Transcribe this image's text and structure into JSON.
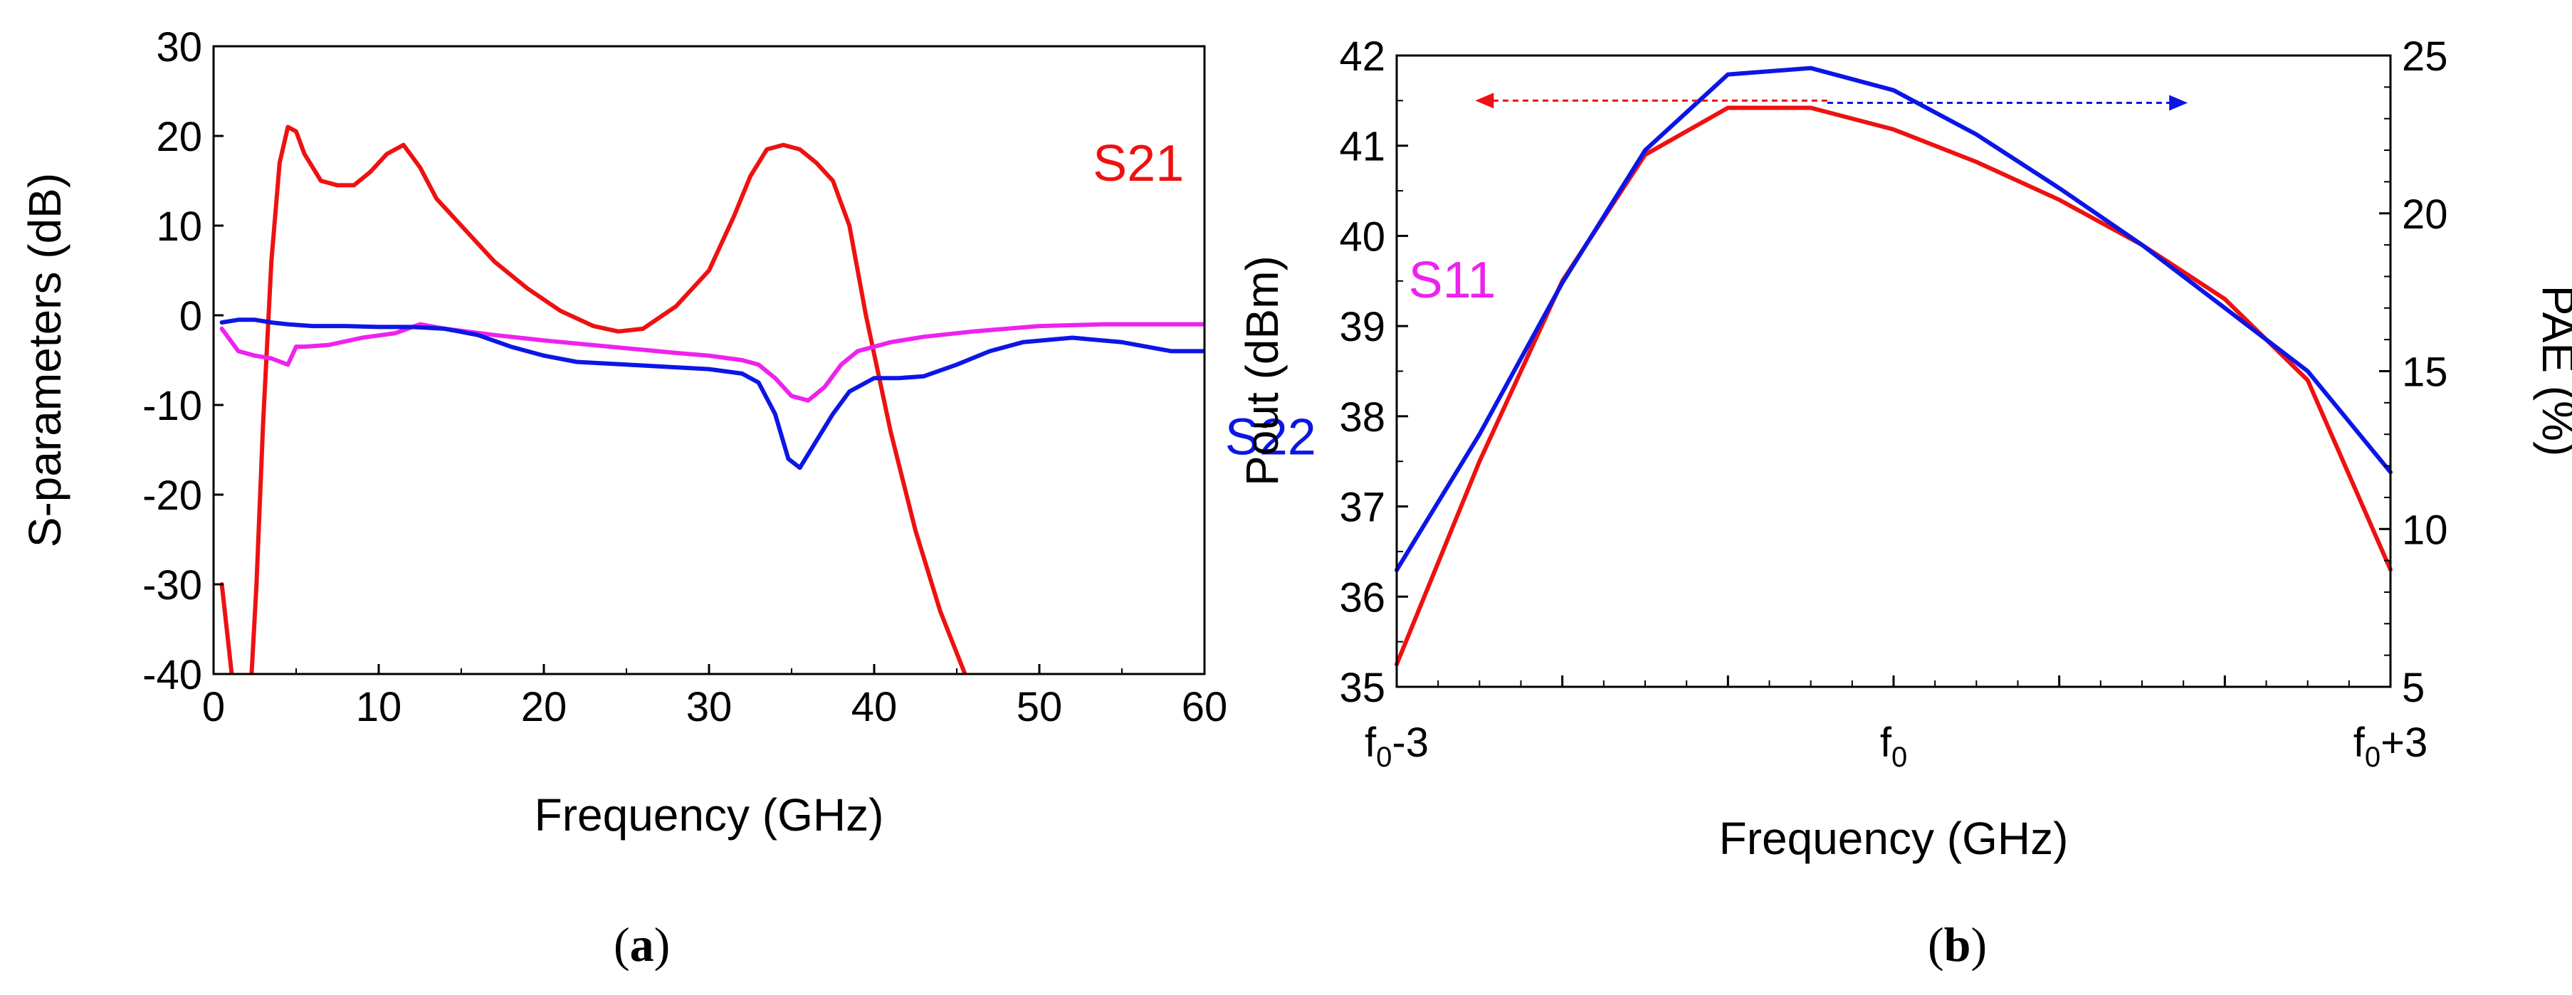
{
  "colors": {
    "red": "#ee1111",
    "blue": "#0b16e6",
    "magenta": "#ee22ee",
    "axis": "#000000"
  },
  "chart_data": [
    {
      "type": "line",
      "panel_label": {
        "open": "(",
        "letter": "a",
        "close": ")"
      },
      "title": "",
      "xlabel": "Frequency (GHz)",
      "ylabel": "S-parameters (dB)",
      "xlim": [
        0,
        60
      ],
      "ylim": [
        -40,
        30
      ],
      "xticks": [
        0,
        10,
        20,
        30,
        40,
        50,
        60
      ],
      "xtick_labels": [
        "0",
        "10",
        "20",
        "30",
        "40",
        "50",
        "60"
      ],
      "yticks": [
        30,
        20,
        10,
        0,
        -10,
        -20,
        -30,
        -40
      ],
      "ytick_labels": [
        "30",
        "20",
        "10",
        "0",
        "-10",
        "-20",
        "-30",
        "-40"
      ],
      "series": [
        {
          "name": "S21",
          "label": "S21",
          "color": "#ee1111",
          "label_x": 56,
          "label_y": 15,
          "segments": [
            {
              "x": [
                0.5,
                1.1
              ],
              "y": [
                -30,
                -40
              ]
            },
            {
              "x": [
                2.3,
                2.6,
                3.0,
                3.5,
                4.0,
                4.5,
                5.0,
                5.5,
                6.5,
                7.5,
                8.5,
                9.5,
                10.5,
                11.5,
                12.5,
                13.5,
                15,
                17,
                19,
                21,
                23,
                24.5,
                26,
                28,
                30,
                31.5,
                32.5,
                33.5,
                34.5,
                35.5,
                36.5,
                37.5,
                38.5,
                39.5,
                41,
                42.5,
                44,
                45.5
              ],
              "y": [
                -40,
                -30,
                -12,
                6,
                17,
                21,
                20.5,
                18,
                15,
                14.5,
                14.5,
                16,
                18,
                19,
                16.5,
                13,
                10,
                6,
                3,
                0.5,
                -1.2,
                -1.8,
                -1.5,
                1,
                5,
                11,
                15.5,
                18.5,
                19,
                18.5,
                17,
                15,
                10,
                0,
                -13,
                -24,
                -33,
                -40
              ]
            }
          ]
        },
        {
          "name": "S11",
          "label": "S11",
          "color": "#ee22ee",
          "label_x": 75,
          "label_y": 2,
          "segments": [
            {
              "x": [
                0.5,
                1.5,
                2.5,
                3.5,
                4.5,
                5,
                5.5,
                7,
                9,
                11,
                12.5,
                14,
                17,
                20,
                24,
                28,
                30,
                32,
                33,
                34,
                35,
                36,
                37,
                38,
                39,
                41,
                43,
                46,
                50,
                54,
                58,
                60
              ],
              "y": [
                -1.5,
                -4,
                -4.5,
                -4.8,
                -5.5,
                -3.5,
                -3.5,
                -3.3,
                -2.5,
                -2,
                -1,
                -1.5,
                -2.2,
                -2.8,
                -3.5,
                -4.2,
                -4.5,
                -5,
                -5.5,
                -7,
                -9,
                -9.5,
                -8,
                -5.5,
                -4,
                -3,
                -2.4,
                -1.8,
                -1.2,
                -1,
                -1,
                -1
              ]
            }
          ]
        },
        {
          "name": "S22",
          "label": "S22",
          "color": "#0b16e6",
          "label_x": 64,
          "label_y": -15.5,
          "segments": [
            {
              "x": [
                0.5,
                1.5,
                2.5,
                3.5,
                4.5,
                6,
                8,
                10,
                12,
                14,
                16,
                18,
                20,
                22,
                25,
                28,
                30,
                32,
                33,
                34,
                34.8,
                35.5,
                36.5,
                37.5,
                38.5,
                40,
                41.5,
                43,
                45,
                47,
                49,
                52,
                55,
                58,
                60
              ],
              "y": [
                -0.8,
                -0.5,
                -0.5,
                -0.8,
                -1,
                -1.2,
                -1.2,
                -1.3,
                -1.3,
                -1.5,
                -2.2,
                -3.5,
                -4.5,
                -5.2,
                -5.5,
                -5.8,
                -6,
                -6.5,
                -7.5,
                -11,
                -16,
                -17,
                -14,
                -11,
                -8.5,
                -7,
                -7,
                -6.8,
                -5.5,
                -4,
                -3,
                -2.5,
                -3,
                -4,
                -4
              ]
            }
          ]
        }
      ]
    },
    {
      "type": "line",
      "panel_label": {
        "open": "(",
        "letter": "b",
        "close": ")"
      },
      "title": "",
      "xlabel": "Frequency (GHz)",
      "ylabel": "Pout (dBm)",
      "ylabel_right": "PAE (%)",
      "xlim": [
        -3,
        3
      ],
      "ylim": [
        35,
        42
      ],
      "ylim_right": [
        5,
        25
      ],
      "xticks": [
        -3,
        0,
        3
      ],
      "xtick_labels": [
        {
          "base": "f",
          "sub": "0",
          "suffix": "-3"
        },
        {
          "base": "f",
          "sub": "0",
          "suffix": ""
        },
        {
          "base": "f",
          "sub": "0",
          "suffix": "+3"
        }
      ],
      "yticks": [
        35,
        36,
        37,
        38,
        39,
        40,
        41,
        42
      ],
      "ytick_labels": [
        "35",
        "36",
        "37",
        "38",
        "39",
        "40",
        "41",
        "42"
      ],
      "yticks_right": [
        5,
        10,
        15,
        20,
        25
      ],
      "ytick_labels_right": [
        "5",
        "10",
        "15",
        "20",
        "25"
      ],
      "series": [
        {
          "name": "Pout",
          "axis": "left",
          "color": "#ee1111",
          "x": [
            -3,
            -2.5,
            -2,
            -1.5,
            -1,
            -0.5,
            0,
            0.5,
            1,
            1.5,
            2,
            2.5,
            3
          ],
          "y": [
            35.25,
            37.5,
            39.5,
            40.9,
            41.42,
            41.42,
            41.18,
            40.82,
            40.4,
            39.9,
            39.3,
            38.4,
            36.3
          ]
        },
        {
          "name": "PAE",
          "axis": "right",
          "color": "#0b16e6",
          "x": [
            -3,
            -2.5,
            -2,
            -1.5,
            -1,
            -0.5,
            0,
            0.5,
            1,
            1.5,
            2,
            2.5,
            3
          ],
          "y": [
            8.7,
            13.0,
            17.8,
            22.0,
            24.4,
            24.6,
            23.9,
            22.5,
            20.8,
            19.0,
            17.0,
            15.0,
            11.8
          ]
        }
      ],
      "annotations": [
        {
          "type": "arrow",
          "direction": "left",
          "target_axis": "left",
          "color": "#ee1111",
          "x_from": -0.4,
          "x_to": -2.5,
          "y": 41.5
        },
        {
          "type": "arrow",
          "direction": "right",
          "target_axis": "right",
          "color": "#0b16e6",
          "x_from": -0.4,
          "x_to": 1.75,
          "y": 23.5
        }
      ]
    }
  ]
}
